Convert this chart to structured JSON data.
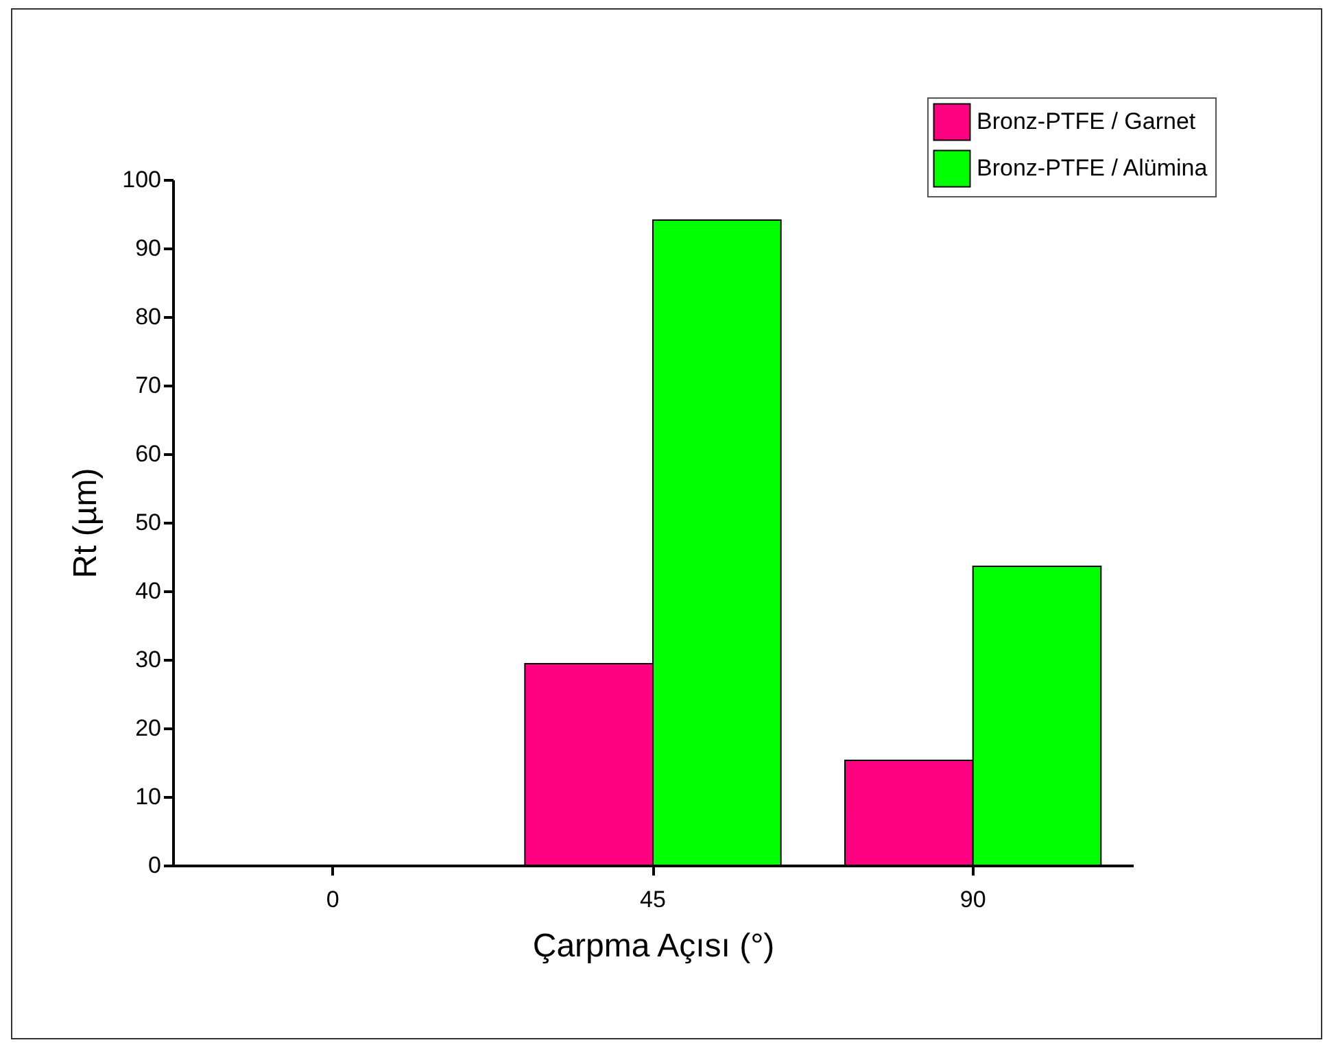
{
  "chart_data": {
    "type": "bar",
    "xlabel": "Çarpma Açısı (°)",
    "ylabel": "Rt (µm)",
    "categories": [
      "0",
      "45",
      "90"
    ],
    "series": [
      {
        "name": "Bronz-PTFE / Garnet",
        "color": "#ff0080",
        "values": [
          null,
          29.4,
          15.3
        ]
      },
      {
        "name": "Bronz-PTFE / Alümina",
        "color": "#00ff00",
        "values": [
          null,
          94.1,
          43.6
        ]
      }
    ],
    "ylim": [
      0,
      100
    ],
    "yticks": [
      0,
      10,
      20,
      30,
      40,
      50,
      60,
      70,
      80,
      90,
      100
    ],
    "legend": "top right",
    "grid": false
  }
}
